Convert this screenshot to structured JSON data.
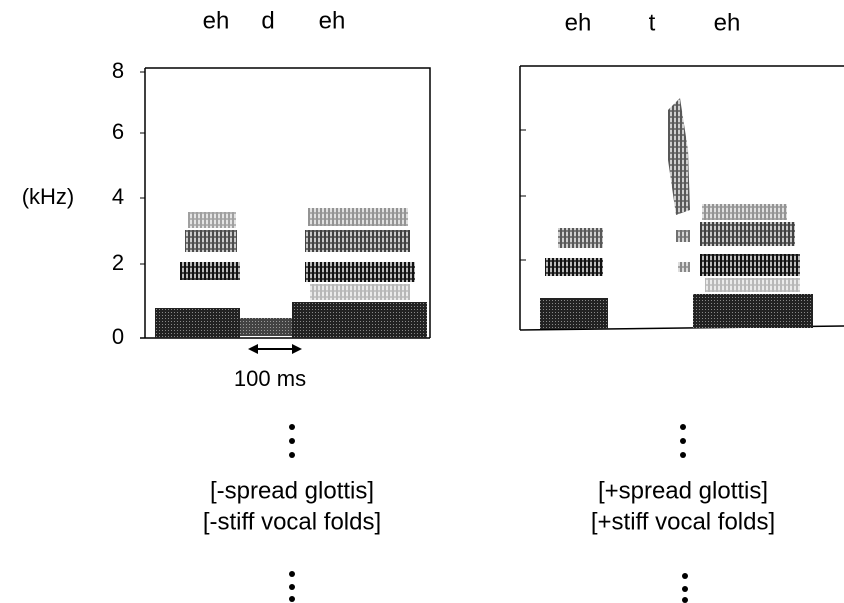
{
  "left_panel": {
    "segments": [
      "eh",
      "d",
      "eh"
    ],
    "y_axis": {
      "label": "(kHz)",
      "ticks": [
        "0",
        "2",
        "4",
        "6",
        "8"
      ]
    },
    "scale_label": "100 ms",
    "features": [
      "[-spread glottis]",
      "[-stiff vocal folds]"
    ]
  },
  "right_panel": {
    "segments": [
      "eh",
      "t",
      "eh"
    ],
    "features": [
      "[+spread glottis]",
      "[+stiff vocal folds]"
    ]
  }
}
